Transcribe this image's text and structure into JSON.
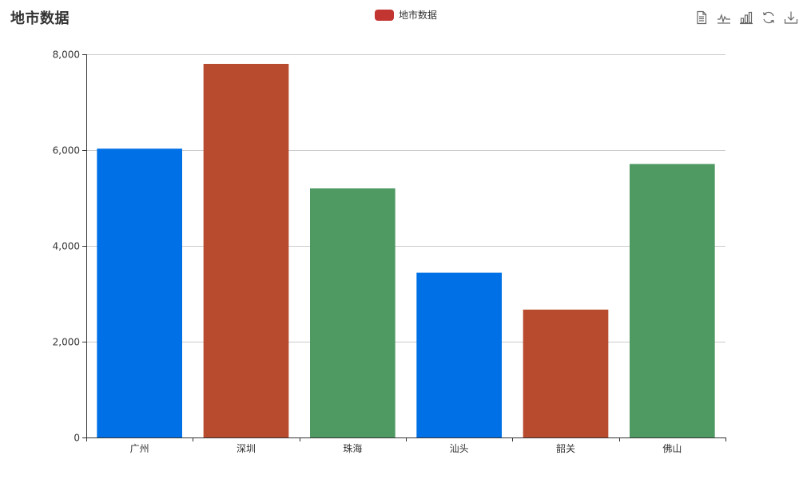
{
  "title": "地市数据",
  "legend": {
    "label": "地市数据",
    "color": "#c23531"
  },
  "toolbox": [
    {
      "name": "data-view-icon"
    },
    {
      "name": "line-chart-icon"
    },
    {
      "name": "bar-chart-icon"
    },
    {
      "name": "restore-icon"
    },
    {
      "name": "download-icon"
    }
  ],
  "chart_data": {
    "type": "bar",
    "categories": [
      "广州",
      "深圳",
      "珠海",
      "汕头",
      "韶关",
      "佛山"
    ],
    "values": [
      6030,
      7800,
      5200,
      3440,
      2670,
      5710
    ],
    "bar_colors": [
      "#0070e6",
      "#b84a2e",
      "#4f9962",
      "#0070e6",
      "#b84a2e",
      "#4f9962"
    ],
    "ylim": [
      0,
      8000
    ],
    "yticks": [
      0,
      2000,
      4000,
      6000,
      8000
    ],
    "ytick_labels": [
      "0",
      "2,000",
      "4,000",
      "6,000",
      "8,000"
    ],
    "grid": true,
    "legend_position": "top-center"
  }
}
